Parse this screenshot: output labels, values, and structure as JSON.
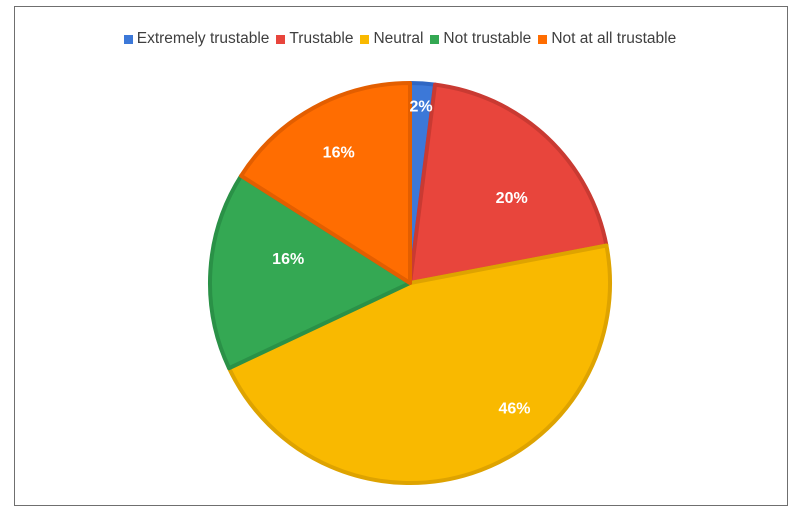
{
  "chart_data": {
    "type": "pie",
    "legend_position": "top",
    "title": "",
    "slices": [
      {
        "label": "Extremely trustable",
        "value": 2,
        "display": "2%",
        "color": "#3c78d8"
      },
      {
        "label": "Trustable",
        "value": 20,
        "display": "20%",
        "color": "#e8453c"
      },
      {
        "label": "Neutral",
        "value": 46,
        "display": "46%",
        "color": "#f9b900"
      },
      {
        "label": "Not trustable",
        "value": 16,
        "display": "16%",
        "color": "#34a853"
      },
      {
        "label": "Not at all trustable",
        "value": 16,
        "display": "16%",
        "color": "#ff6d01"
      }
    ],
    "slice_border_colors": [
      "#2f66c3",
      "#c93a32",
      "#dea300",
      "#2a9147",
      "#e35e00"
    ]
  }
}
